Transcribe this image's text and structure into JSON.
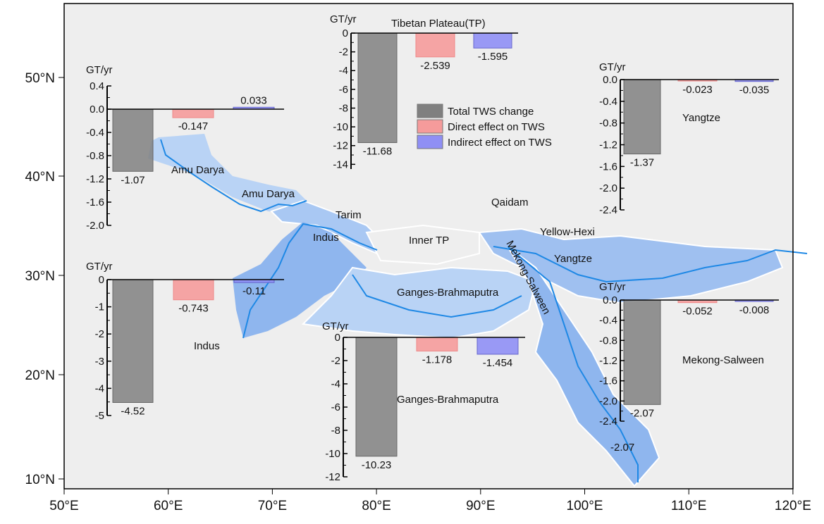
{
  "map": {
    "x_ticks": [
      "50°E",
      "60°E",
      "70°E",
      "80°E",
      "90°E",
      "100°E",
      "110°E",
      "120°E"
    ],
    "y_ticks": [
      "50°N",
      "40°N",
      "30°N",
      "20°N",
      "10°N"
    ],
    "basin_labels": [
      "Amu  Darya",
      "Amu  Darya",
      "Tarim",
      "Qaidam",
      "Indus",
      "Inner TP",
      "Yellow-Hexi",
      "Yangtze",
      "Mekong-Salween",
      "Ganges-Brahmaputra",
      "-2.07"
    ],
    "colors": {
      "basin_fill": "#b9d3f5",
      "basin_fill_dark": "#8fb6ee",
      "river": "#1e88e5",
      "boundary": "#ffffff",
      "background": "#eeeeee"
    }
  },
  "legend": {
    "items": [
      {
        "label": "Total TWS change",
        "color": "#808080"
      },
      {
        "label": "Direct effect on TWS",
        "color": "#f59b9b"
      },
      {
        "label": "Indirect effect on TWS",
        "color": "#8f8ff5"
      }
    ]
  },
  "chart_data": [
    {
      "type": "bar",
      "title": "",
      "ylabel": "GT/yr",
      "region": "Amu Darya",
      "ylim": [
        -2.0,
        0.4
      ],
      "y_ticks": [
        "0.4",
        "0.0",
        "-0.4",
        "-0.8",
        "-1.2",
        "-1.6",
        "-2.0"
      ],
      "tick_values": [
        0.4,
        0,
        -0.4,
        -0.8,
        -1.2,
        -1.6,
        -2.0
      ],
      "values": [
        -1.07,
        -0.147,
        0.033
      ],
      "labels": [
        "-1.07",
        "-0.147",
        "0.033"
      ]
    },
    {
      "type": "bar",
      "title": "Tibetan Plateau(TP)",
      "ylabel": "GT/yr",
      "ylim": [
        -14.5,
        0
      ],
      "y_ticks": [
        "0",
        "-2",
        "-4",
        "-6",
        "-8",
        "-10",
        "-12",
        "-14"
      ],
      "tick_values": [
        0,
        -2,
        -4,
        -6,
        -8,
        -10,
        -12,
        -14
      ],
      "values": [
        -11.68,
        -2.539,
        -1.595
      ],
      "labels": [
        "-11.68",
        "-2.539",
        "-1.595"
      ]
    },
    {
      "type": "bar",
      "title": "Yangtze",
      "ylabel": "GT/yr",
      "ylim": [
        -2.4,
        0
      ],
      "y_ticks": [
        "0.0",
        "-0.4",
        "-0.8",
        "-1.2",
        "-1.6",
        "-2.0",
        "-2.4"
      ],
      "tick_values": [
        0,
        -0.4,
        -0.8,
        -1.2,
        -1.6,
        -2.0,
        -2.4
      ],
      "values": [
        -1.37,
        -0.023,
        -0.035
      ],
      "labels": [
        "-1.37",
        "-0.023",
        "-0.035"
      ]
    },
    {
      "type": "bar",
      "title": "Indus",
      "ylabel": "GT/yr",
      "ylim": [
        -5,
        0
      ],
      "y_ticks": [
        "0",
        "-1",
        "-2",
        "-3",
        "-4",
        "-5"
      ],
      "tick_values": [
        0,
        -1,
        -2,
        -3,
        -4,
        -5
      ],
      "values": [
        -4.52,
        -0.743,
        -0.11
      ],
      "labels": [
        "-4.52",
        "-0.743",
        "-0.11"
      ]
    },
    {
      "type": "bar",
      "title": "Ganges-Brahmaputra",
      "ylabel": "GT/yr",
      "ylim": [
        -12,
        0
      ],
      "y_ticks": [
        "0",
        "-2",
        "-4",
        "-6",
        "-8",
        "-10",
        "-12"
      ],
      "tick_values": [
        0,
        -2,
        -4,
        -6,
        -8,
        -10,
        -12
      ],
      "values": [
        -10.23,
        -1.178,
        -1.454
      ],
      "labels": [
        "-10.23",
        "-1.178",
        "-1.454"
      ]
    },
    {
      "type": "bar",
      "title": "Mekong-Salween",
      "ylabel": "GT/yr",
      "ylim": [
        -2.4,
        0
      ],
      "y_ticks": [
        "0.0",
        "-0.4",
        "-0.8",
        "-1.2",
        "-1.6",
        "-2.0",
        "-2.4"
      ],
      "tick_values": [
        0,
        -0.4,
        -0.8,
        -1.2,
        -1.6,
        -2.0,
        -2.4
      ],
      "values": [
        -2.07,
        -0.052,
        -0.008
      ],
      "labels": [
        "-2.07",
        "-0.052",
        "-0.008"
      ]
    }
  ]
}
